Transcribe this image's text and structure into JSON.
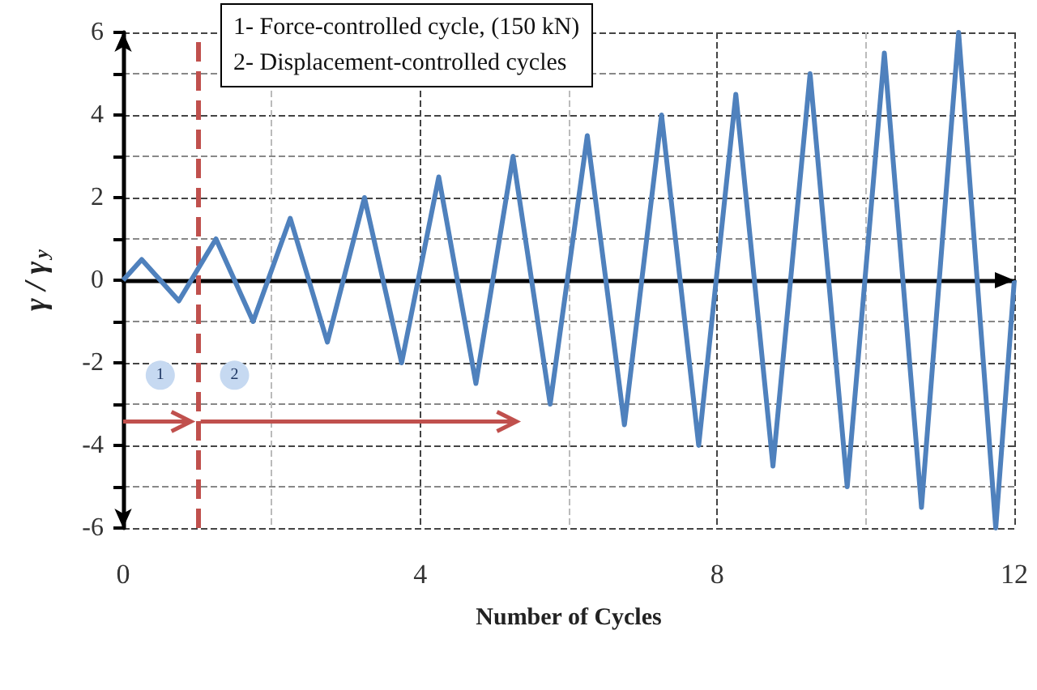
{
  "chart_data": {
    "type": "line",
    "xlabel": "Number of Cycles",
    "ylabel": "γ / γ$_{y}$",
    "x": [
      0,
      0.25,
      0.75,
      1.25,
      1.75,
      2.25,
      2.75,
      3.25,
      3.75,
      4.25,
      4.75,
      5.25,
      5.75,
      6.25,
      6.75,
      7.25,
      7.75,
      8.25,
      8.75,
      9.25,
      9.75,
      10.25,
      10.75,
      11.25,
      11.75,
      12
    ],
    "series": [
      {
        "color": "#4f81bd",
        "values": [
          0,
          0.5,
          -0.5,
          1,
          -1,
          1.5,
          -1.5,
          2,
          -2,
          2.5,
          -2.5,
          3,
          -3,
          3.5,
          -3.5,
          4,
          -4,
          4.5,
          -4.5,
          5,
          -5,
          5.5,
          -5.5,
          6,
          -6,
          0
        ]
      }
    ],
    "xlim": [
      0,
      12
    ],
    "xticks": [
      0,
      4,
      8,
      12
    ],
    "ylim": [
      -6,
      6
    ],
    "yticks": [
      -6,
      -4,
      -2,
      0,
      2,
      4,
      6
    ],
    "grid": true,
    "marker": "none",
    "line_style": "solid",
    "ref_lines": [
      {
        "axis": "x",
        "value": 1,
        "color": "#c0504d",
        "line_style": "dashed"
      }
    ],
    "annotations": [
      "1- Force-controlled cycle, (150 kN)",
      "2- Displacement-controlled cycles",
      {
        "text": "1",
        "x": 0.5,
        "y": -2.3
      },
      {
        "text": "2",
        "x": 1.5,
        "y": -2.3
      }
    ]
  }
}
